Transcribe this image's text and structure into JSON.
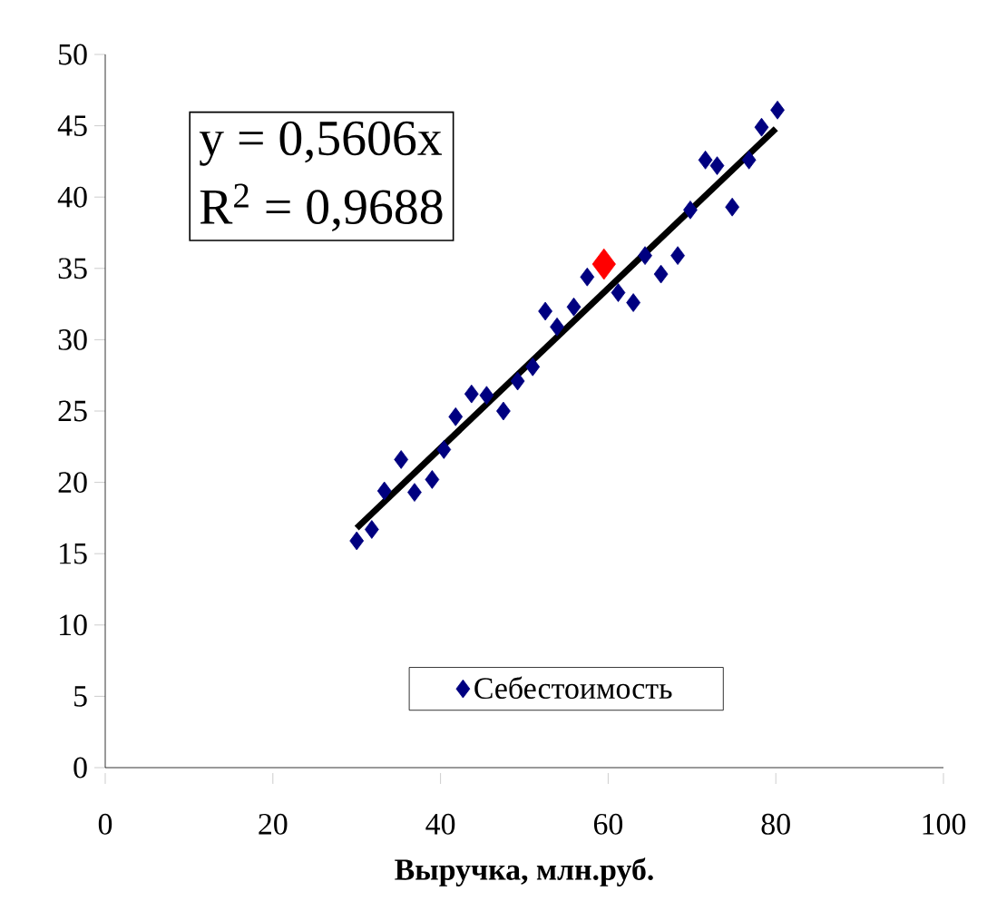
{
  "chart_data": {
    "type": "scatter",
    "xlabel": "Выручка, млн.руб.",
    "annotations": [
      "y = 0,5606x",
      "R$^{2}$ = 0,9688"
    ],
    "xlim": [
      0,
      100
    ],
    "ylim": [
      0,
      50
    ],
    "xticks": [
      0,
      20,
      40,
      60,
      80,
      100
    ],
    "yticks": [
      0,
      5,
      10,
      15,
      20,
      25,
      30,
      35,
      40,
      45,
      50
    ],
    "marker": "diamond",
    "legend": "bottom",
    "grid": false,
    "series": [
      {
        "name": "Себестоимость",
        "color": "#000080",
        "x": [
          30.0,
          31.8,
          33.3,
          35.3,
          36.9,
          39.0,
          40.4,
          41.8,
          43.7,
          45.5,
          47.5,
          49.2,
          51.0,
          52.5,
          53.9,
          55.9,
          57.5,
          61.2,
          63.0,
          64.4,
          66.3,
          68.3,
          69.8,
          71.6,
          73.0,
          74.8,
          76.8,
          78.3,
          80.2
        ],
        "values": [
          15.9,
          16.7,
          19.4,
          21.6,
          19.3,
          20.2,
          22.3,
          24.6,
          26.2,
          26.1,
          25.0,
          27.1,
          28.1,
          32.0,
          30.9,
          32.3,
          34.4,
          33.3,
          32.6,
          35.9,
          34.6,
          35.9,
          39.1,
          42.6,
          42.2,
          39.3,
          42.6,
          44.9,
          46.1
        ]
      },
      {
        "color": "#000000",
        "type": "line",
        "marker": "none",
        "x": [
          30,
          80
        ],
        "values": [
          16.8,
          44.8
        ]
      },
      {
        "color": "#ff0000",
        "x": [
          59.5
        ],
        "values": [
          35.3
        ]
      }
    ]
  }
}
